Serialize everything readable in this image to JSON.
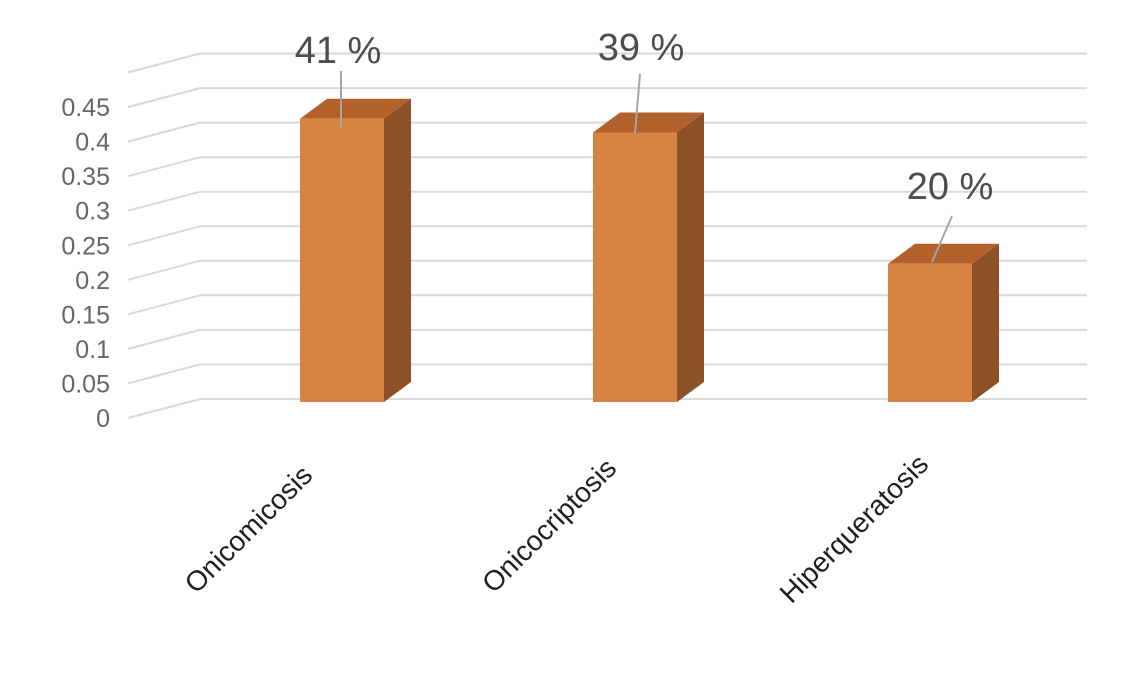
{
  "chart_data": {
    "type": "bar",
    "style": "3d-column",
    "title": "",
    "xlabel": "",
    "ylabel": "",
    "categories": [
      "Onicomicosis",
      "Onicocriptosis",
      "Hiperqueratosis"
    ],
    "values": [
      0.41,
      0.39,
      0.2
    ],
    "data_labels": [
      "41 %",
      "39 %",
      "20 %"
    ],
    "ytick_values": [
      0,
      0.05,
      0.1,
      0.15,
      0.2,
      0.25,
      0.3,
      0.35,
      0.4,
      0.45
    ],
    "ytick_labels": [
      "0",
      "0.05",
      "0.1",
      "0.15",
      "0.2",
      "0.25",
      "0.3",
      "0.35",
      "0.4",
      "0.45"
    ],
    "ylim": [
      0,
      0.5
    ],
    "gridline_step": 0.05,
    "grid": true,
    "legend": false,
    "category_label_rotation_deg": -45
  },
  "colors": {
    "background": "#FFFFFF",
    "bar_front": "#D98342",
    "bar_top": "#B2612A",
    "bar_side": "#8C5126",
    "gridline": "#D9D9D9",
    "leader_line": "#A6A6A6",
    "axis_tick_text": "#666666",
    "data_label_text": "#4D4D4D",
    "category_text": "#1F1F1F"
  }
}
